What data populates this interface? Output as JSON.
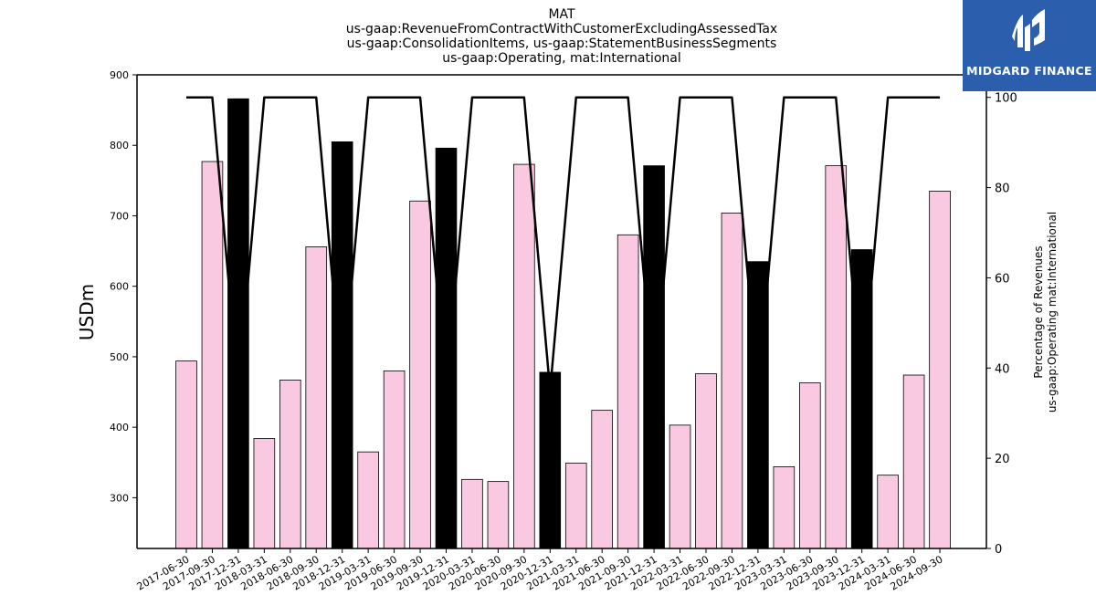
{
  "title_lines": [
    "MAT",
    "us-gaap:RevenueFromContractWithCustomerExcludingAssessedTax",
    "us-gaap:ConsolidationItems, us-gaap:StatementBusinessSegments",
    "us-gaap:Operating, mat:International"
  ],
  "logo": {
    "text": "MIDGARD FINANCE",
    "bg": "#2b5fae"
  },
  "colors": {
    "bar_normal": "#f9c8e1",
    "bar_q4": "#000000",
    "line": "#000000"
  },
  "chart_data": {
    "type": "bar",
    "title": "MAT\nus-gaap:RevenueFromContractWithCustomerExcludingAssessedTax\nus-gaap:ConsolidationItems, us-gaap:StatementBusinessSegments\nus-gaap:Operating, mat:International",
    "ylabel": "USDm",
    "y2label": [
      "Percentage of Revenues",
      "us-gaap:Operating mat:International"
    ],
    "ylim": [
      228,
      900
    ],
    "y2lim": [
      0,
      105
    ],
    "yticks": [
      300,
      400,
      500,
      600,
      700,
      800,
      900
    ],
    "y2ticks": [
      0,
      20,
      40,
      60,
      80,
      100
    ],
    "categories": [
      "2017-06-30",
      "2017-09-30",
      "2017-12-31",
      "2018-03-31",
      "2018-06-30",
      "2018-09-30",
      "2018-12-31",
      "2019-03-31",
      "2019-06-30",
      "2019-09-30",
      "2019-12-31",
      "2020-03-31",
      "2020-06-30",
      "2020-09-30",
      "2020-12-31",
      "2021-03-31",
      "2021-06-30",
      "2021-09-30",
      "2021-12-31",
      "2022-03-31",
      "2022-06-30",
      "2022-09-30",
      "2022-12-31",
      "2023-03-31",
      "2023-06-30",
      "2023-09-30",
      "2023-12-31",
      "2024-03-31",
      "2024-06-30",
      "2024-09-30"
    ],
    "series": [
      {
        "type": "bar",
        "values": [
          494,
          777,
          866,
          384,
          467,
          656,
          805,
          365,
          480,
          721,
          796,
          326,
          323,
          773,
          478,
          349,
          424,
          673,
          771,
          403,
          476,
          704,
          635,
          344,
          463,
          771,
          652,
          332,
          474,
          735
        ],
        "highlight": [
          false,
          false,
          true,
          false,
          false,
          false,
          true,
          false,
          false,
          false,
          true,
          false,
          false,
          false,
          true,
          false,
          false,
          false,
          true,
          false,
          false,
          false,
          true,
          false,
          false,
          false,
          true,
          false,
          false,
          false
        ]
      },
      {
        "type": "line",
        "axis": "right",
        "values": [
          100,
          100,
          35,
          100,
          100,
          100,
          35,
          100,
          100,
          100,
          35,
          100,
          100,
          100,
          35,
          100,
          100,
          100,
          35,
          100,
          100,
          100,
          35,
          100,
          100,
          100,
          35,
          100,
          100,
          100
        ]
      }
    ],
    "grid": false
  }
}
